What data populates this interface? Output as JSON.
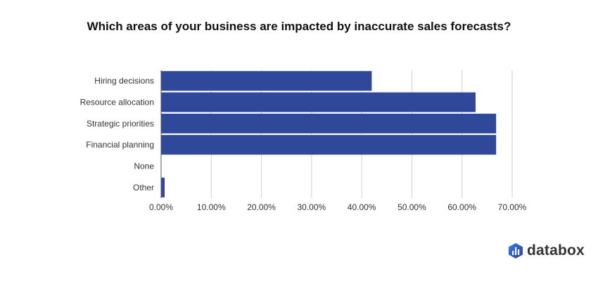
{
  "chart_data": {
    "type": "bar",
    "orientation": "horizontal",
    "title": "Which areas of your business are impacted by inaccurate sales forecasts?",
    "categories": [
      "Hiring decisions",
      "Resource allocation",
      "Strategic priorities",
      "Financial planning",
      "None",
      "Other"
    ],
    "values": [
      42,
      62.7,
      66.8,
      66.8,
      0,
      0.7
    ],
    "xlim": [
      0,
      70
    ],
    "xticks": [
      0,
      10,
      20,
      30,
      40,
      50,
      60,
      70
    ],
    "xtick_labels": [
      "0.00%",
      "10.00%",
      "20.00%",
      "30.00%",
      "40.00%",
      "50.00%",
      "60.00%",
      "70.00%"
    ],
    "xlabel": "",
    "ylabel": "",
    "grid": true,
    "bar_color": "#2f4899"
  },
  "brand": {
    "name": "databox",
    "icon": "databox-logo-icon",
    "color": "#2f62c8"
  }
}
